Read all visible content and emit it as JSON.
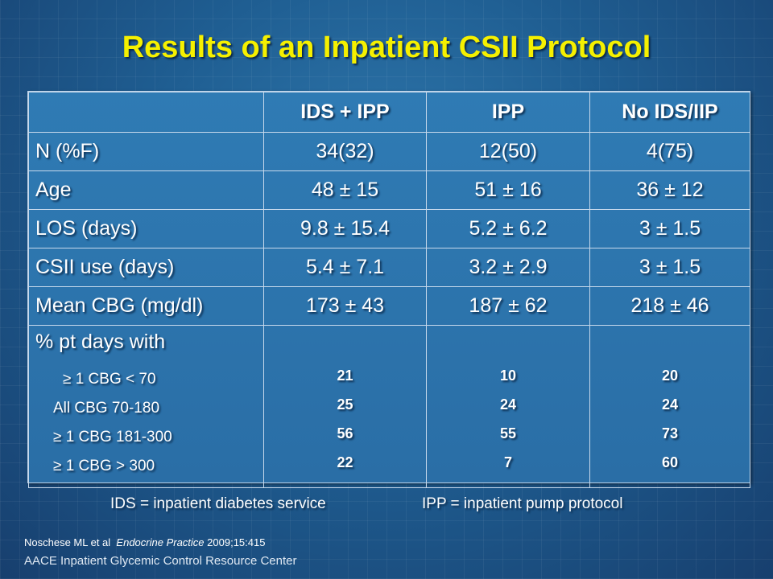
{
  "title": "Results of an Inpatient CSII Protocol",
  "table": {
    "headers": [
      "",
      "IDS + IPP",
      "IPP",
      "No IDS/IIP"
    ],
    "rows": [
      {
        "label": "N (%F)",
        "values": [
          "34(32)",
          "12(50)",
          "4(75)"
        ]
      },
      {
        "label": "Age",
        "values": [
          "48 ± 15",
          "51 ± 16",
          "36 ± 12"
        ]
      },
      {
        "label": "LOS (days)",
        "values": [
          "9.8 ± 15.4",
          "5.2 ± 6.2",
          "3 ± 1.5"
        ]
      },
      {
        "label": "CSII use (days)",
        "values": [
          "5.4 ± 7.1",
          "3.2 ± 2.9",
          "3 ± 1.5"
        ]
      },
      {
        "label": "Mean CBG (mg/dl)",
        "values": [
          "173 ± 43",
          "187 ± 62",
          "218 ± 46"
        ]
      }
    ],
    "pt_days": {
      "label": "% pt days with",
      "sublabels": [
        "≥ 1 CBG < 70",
        "All CBG 70-180",
        "≥ 1 CBG 181-300",
        "≥ 1 CBG > 300"
      ],
      "columns": [
        [
          "21",
          "25",
          "56",
          "22"
        ],
        [
          "10",
          "24",
          "55",
          "7"
        ],
        [
          "20",
          "24",
          "73",
          "60"
        ]
      ]
    }
  },
  "footnotes": {
    "ids": "IDS = inpatient diabetes service",
    "ipp": "IPP = inpatient pump protocol"
  },
  "citation": {
    "authors": "Noschese ML et al",
    "journal": "Endocrine Practice",
    "ref": "2009;15:415"
  },
  "organization": "AACE Inpatient Glycemic Control Resource Center"
}
